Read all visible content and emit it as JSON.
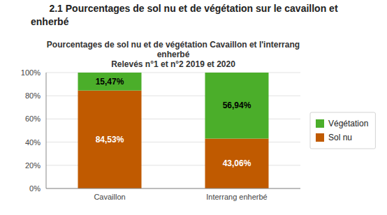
{
  "chart_data": {
    "type": "bar",
    "stacked": true,
    "title": [
      "2.1 Pourcentages de sol nu et de végétation sur le cavaillon et",
      "enherbé"
    ],
    "subtitle": [
      "Pourcentages de sol nu et de végétation Cavaillon et l'interrang",
      "enherbé",
      "Relevés n°1 et n°2 2019 et 2020"
    ],
    "categories": [
      "Cavaillon",
      "Interrang enherbé"
    ],
    "series": [
      {
        "name": "Sol nu",
        "color": "#C05A00",
        "values": [
          84.53,
          43.06
        ],
        "value_labels": [
          "84,53%",
          "43,06%"
        ]
      },
      {
        "name": "Végétation",
        "color": "#4BAE2A",
        "values": [
          15.47,
          56.94
        ],
        "value_labels": [
          "15,47%",
          "56,94%"
        ]
      }
    ],
    "ylim": [
      0,
      100
    ],
    "yticks": [
      {
        "value": 0,
        "label": "0%"
      },
      {
        "value": 20,
        "label": "20%"
      },
      {
        "value": 40,
        "label": "40%"
      },
      {
        "value": 60,
        "label": "60%"
      },
      {
        "value": 80,
        "label": "80%"
      },
      {
        "value": 100,
        "label": "100%"
      }
    ],
    "grid": true,
    "legend": "right",
    "data_labels": true
  }
}
